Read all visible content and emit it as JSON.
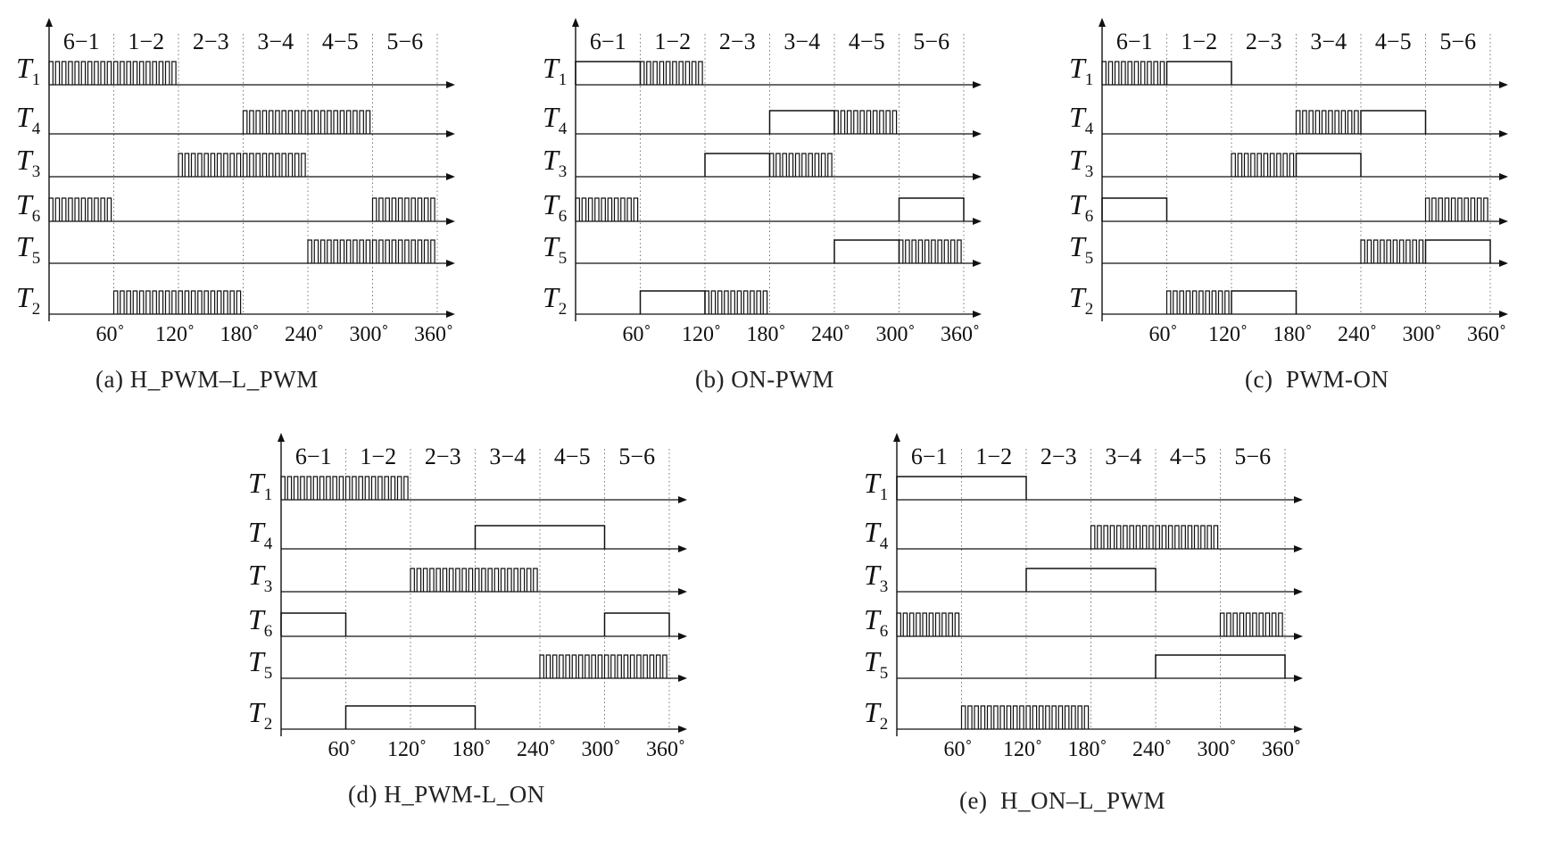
{
  "figure": {
    "panels": [
      {
        "id": "a",
        "caption": "(a) H_PWM–L_PWM",
        "segment_labels": [
          "6−1",
          "1−2",
          "2−3",
          "3−4",
          "4−5",
          "5−6"
        ],
        "angle_labels": [
          "60˚",
          "120˚",
          "180˚",
          "240˚",
          "300˚",
          "360˚"
        ],
        "rows": [
          {
            "base": "T",
            "sub": "1",
            "on": [
              {
                "from": 0,
                "to": 120,
                "mode": "pwm"
              }
            ]
          },
          {
            "base": "T",
            "sub": "4",
            "on": [
              {
                "from": 180,
                "to": 300,
                "mode": "pwm"
              }
            ]
          },
          {
            "base": "T",
            "sub": "3",
            "on": [
              {
                "from": 120,
                "to": 240,
                "mode": "pwm"
              }
            ]
          },
          {
            "base": "T",
            "sub": "6",
            "on": [
              {
                "from": 0,
                "to": 60,
                "mode": "pwm"
              },
              {
                "from": 300,
                "to": 360,
                "mode": "pwm"
              }
            ]
          },
          {
            "base": "T",
            "sub": "5",
            "on": [
              {
                "from": 240,
                "to": 360,
                "mode": "pwm"
              }
            ]
          },
          {
            "base": "T",
            "sub": "2",
            "on": [
              {
                "from": 60,
                "to": 180,
                "mode": "pwm"
              }
            ]
          }
        ]
      },
      {
        "id": "b",
        "caption": "(b) ON-PWM",
        "segment_labels": [
          "6−1",
          "1−2",
          "2−3",
          "3−4",
          "4−5",
          "5−6"
        ],
        "angle_labels": [
          "60˚",
          "120˚",
          "180˚",
          "240˚",
          "300˚",
          "360˚"
        ],
        "rows": [
          {
            "base": "T",
            "sub": "1",
            "on": [
              {
                "from": 0,
                "to": 60,
                "mode": "on"
              },
              {
                "from": 60,
                "to": 120,
                "mode": "pwm"
              }
            ]
          },
          {
            "base": "T",
            "sub": "4",
            "on": [
              {
                "from": 180,
                "to": 240,
                "mode": "on"
              },
              {
                "from": 240,
                "to": 300,
                "mode": "pwm"
              }
            ]
          },
          {
            "base": "T",
            "sub": "3",
            "on": [
              {
                "from": 120,
                "to": 180,
                "mode": "on"
              },
              {
                "from": 180,
                "to": 240,
                "mode": "pwm"
              }
            ]
          },
          {
            "base": "T",
            "sub": "6",
            "on": [
              {
                "from": 0,
                "to": 60,
                "mode": "pwm"
              },
              {
                "from": 300,
                "to": 360,
                "mode": "on"
              }
            ]
          },
          {
            "base": "T",
            "sub": "5",
            "on": [
              {
                "from": 240,
                "to": 300,
                "mode": "on"
              },
              {
                "from": 300,
                "to": 360,
                "mode": "pwm"
              }
            ]
          },
          {
            "base": "T",
            "sub": "2",
            "on": [
              {
                "from": 60,
                "to": 120,
                "mode": "on"
              },
              {
                "from": 120,
                "to": 180,
                "mode": "pwm"
              }
            ]
          }
        ]
      },
      {
        "id": "c",
        "caption": "(c)  PWM-ON",
        "segment_labels": [
          "6−1",
          "1−2",
          "2−3",
          "3−4",
          "4−5",
          "5−6"
        ],
        "angle_labels": [
          "60˚",
          "120˚",
          "180˚",
          "240˚",
          "300˚",
          "360˚"
        ],
        "rows": [
          {
            "base": "T",
            "sub": "1",
            "on": [
              {
                "from": 0,
                "to": 60,
                "mode": "pwm"
              },
              {
                "from": 60,
                "to": 120,
                "mode": "on"
              }
            ]
          },
          {
            "base": "T",
            "sub": "4",
            "on": [
              {
                "from": 180,
                "to": 240,
                "mode": "pwm"
              },
              {
                "from": 240,
                "to": 300,
                "mode": "on"
              }
            ]
          },
          {
            "base": "T",
            "sub": "3",
            "on": [
              {
                "from": 120,
                "to": 180,
                "mode": "pwm"
              },
              {
                "from": 180,
                "to": 240,
                "mode": "on"
              }
            ]
          },
          {
            "base": "T",
            "sub": "6",
            "on": [
              {
                "from": 0,
                "to": 60,
                "mode": "on"
              },
              {
                "from": 300,
                "to": 360,
                "mode": "pwm"
              }
            ]
          },
          {
            "base": "T",
            "sub": "5",
            "on": [
              {
                "from": 240,
                "to": 300,
                "mode": "pwm"
              },
              {
                "from": 300,
                "to": 360,
                "mode": "on"
              }
            ]
          },
          {
            "base": "T",
            "sub": "2",
            "on": [
              {
                "from": 60,
                "to": 120,
                "mode": "pwm"
              },
              {
                "from": 120,
                "to": 180,
                "mode": "on"
              }
            ]
          }
        ]
      },
      {
        "id": "d",
        "caption": "(d) H_PWM-L_ON",
        "segment_labels": [
          "6−1",
          "1−2",
          "2−3",
          "3−4",
          "4−5",
          "5−6"
        ],
        "angle_labels": [
          "60˚",
          "120˚",
          "180˚",
          "240˚",
          "300˚",
          "360˚"
        ],
        "rows": [
          {
            "base": "T",
            "sub": "1",
            "on": [
              {
                "from": 0,
                "to": 120,
                "mode": "pwm"
              }
            ]
          },
          {
            "base": "T",
            "sub": "4",
            "on": [
              {
                "from": 180,
                "to": 300,
                "mode": "on"
              }
            ]
          },
          {
            "base": "T",
            "sub": "3",
            "on": [
              {
                "from": 120,
                "to": 240,
                "mode": "pwm"
              }
            ]
          },
          {
            "base": "T",
            "sub": "6",
            "on": [
              {
                "from": 0,
                "to": 60,
                "mode": "on"
              },
              {
                "from": 300,
                "to": 360,
                "mode": "on"
              }
            ]
          },
          {
            "base": "T",
            "sub": "5",
            "on": [
              {
                "from": 240,
                "to": 360,
                "mode": "pwm"
              }
            ]
          },
          {
            "base": "T",
            "sub": "2",
            "on": [
              {
                "from": 60,
                "to": 180,
                "mode": "on"
              }
            ]
          }
        ]
      },
      {
        "id": "e",
        "caption": "(e)  H_ON–L_PWM",
        "segment_labels": [
          "6−1",
          "1−2",
          "2−3",
          "3−4",
          "4−5",
          "5−6"
        ],
        "angle_labels": [
          "60˚",
          "120˚",
          "180˚",
          "240˚",
          "300˚",
          "360˚"
        ],
        "rows": [
          {
            "base": "T",
            "sub": "1",
            "on": [
              {
                "from": 0,
                "to": 120,
                "mode": "on"
              }
            ]
          },
          {
            "base": "T",
            "sub": "4",
            "on": [
              {
                "from": 180,
                "to": 300,
                "mode": "pwm"
              }
            ]
          },
          {
            "base": "T",
            "sub": "3",
            "on": [
              {
                "from": 120,
                "to": 240,
                "mode": "on"
              }
            ]
          },
          {
            "base": "T",
            "sub": "6",
            "on": [
              {
                "from": 0,
                "to": 60,
                "mode": "pwm"
              },
              {
                "from": 300,
                "to": 360,
                "mode": "pwm"
              }
            ]
          },
          {
            "base": "T",
            "sub": "5",
            "on": [
              {
                "from": 240,
                "to": 360,
                "mode": "on"
              }
            ]
          },
          {
            "base": "T",
            "sub": "2",
            "on": [
              {
                "from": 60,
                "to": 180,
                "mode": "pwm"
              }
            ]
          }
        ]
      }
    ]
  }
}
